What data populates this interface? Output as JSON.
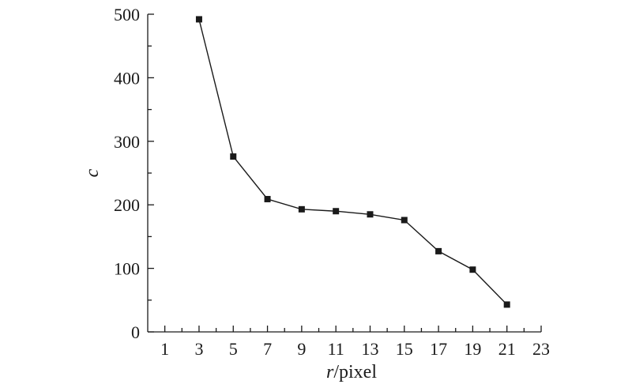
{
  "chart_data": {
    "type": "line",
    "xlabel_italic": "r",
    "xlabel_rest": "/pixel",
    "ylabel": "c",
    "xlim": [
      0,
      23
    ],
    "ylim": [
      0,
      500
    ],
    "x_ticks": [
      1,
      3,
      5,
      7,
      9,
      11,
      13,
      15,
      17,
      19,
      21,
      23
    ],
    "y_ticks": [
      0,
      100,
      200,
      300,
      400,
      500
    ],
    "marker": "square",
    "grid": false,
    "series": [
      {
        "x": [
          3,
          5,
          7,
          9,
          11,
          13,
          15,
          17,
          19,
          21
        ],
        "y": [
          492,
          276,
          209,
          193,
          190,
          185,
          176,
          127,
          98,
          43
        ]
      }
    ]
  }
}
